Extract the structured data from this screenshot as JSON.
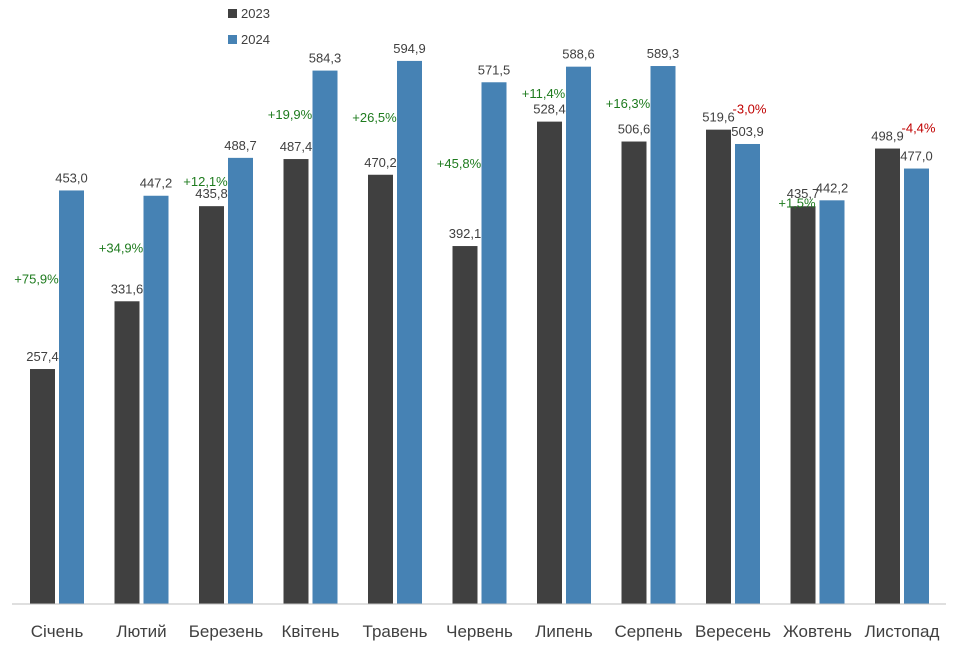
{
  "chart_data": {
    "type": "bar",
    "categories": [
      "Січень",
      "Лютий",
      "Березень",
      "Квітень",
      "Травень",
      "Червень",
      "Липень",
      "Серпень",
      "Вересень",
      "Жовтень",
      "Листопад"
    ],
    "series": [
      {
        "name": "2023",
        "color": "#404040",
        "values": [
          257.4,
          331.6,
          435.8,
          487.4,
          470.2,
          392.1,
          528.4,
          506.6,
          519.6,
          435.7,
          498.9
        ],
        "labels": [
          "257,4",
          "331,6",
          "435,8",
          "487,4",
          "470,2",
          "392,1",
          "528,4",
          "506,6",
          "519,6",
          "435,7",
          "498,9"
        ]
      },
      {
        "name": "2024",
        "color": "#4682B4",
        "values": [
          453.0,
          447.2,
          488.7,
          584.3,
          594.9,
          571.5,
          588.6,
          589.3,
          503.9,
          442.2,
          477.0
        ],
        "labels": [
          "453,0",
          "447,2",
          "488,7",
          "584,3",
          "594,9",
          "571,5",
          "588,6",
          "589,3",
          "503,9",
          "442,2",
          "477,0"
        ]
      }
    ],
    "changes": [
      "+75,9%",
      "+34,9%",
      "+12,1%",
      "+19,9%",
      "+26,5%",
      "+45,8%",
      "+11,4%",
      "+16,3%",
      "-3,0%",
      "+1,5%",
      "-4,4%"
    ],
    "change_colors": {
      "positive": "#1E7B1E",
      "negative": "#C00000"
    },
    "ylim": [
      0,
      620
    ],
    "grid": false,
    "legend": {
      "position": "top-left",
      "entries": [
        "2023",
        "2024"
      ]
    },
    "title": "",
    "xlabel": "",
    "ylabel": ""
  }
}
